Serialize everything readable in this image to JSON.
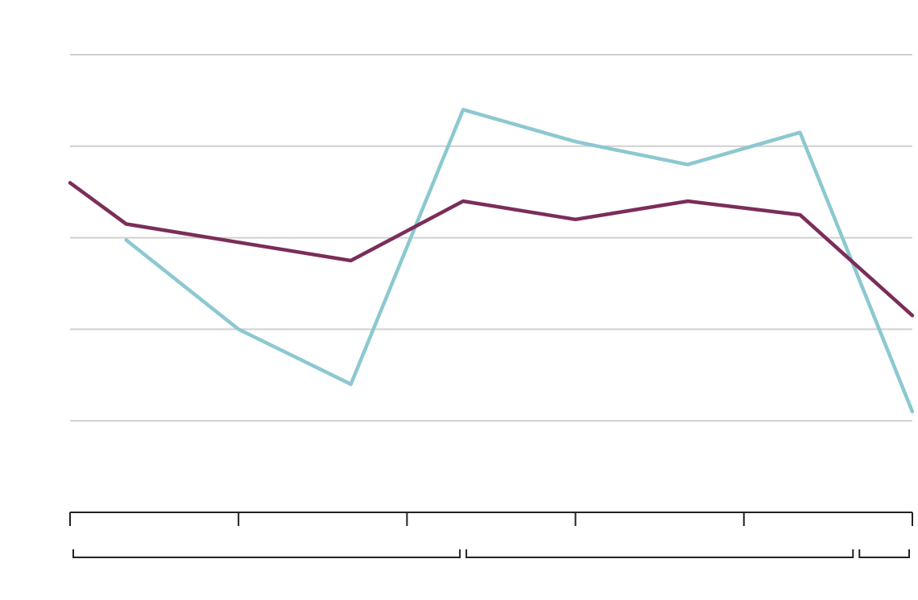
{
  "chart_data": {
    "type": "line",
    "x": [
      0,
      1,
      2,
      3,
      4,
      5,
      6,
      7,
      8,
      9,
      10,
      11,
      12,
      13,
      14,
      15
    ],
    "x_range": [
      0,
      15
    ],
    "ylim": [
      0,
      100
    ],
    "y_gridlines": [
      20,
      40,
      60,
      80,
      100
    ],
    "x_ticks": [
      0,
      3,
      6,
      9,
      12,
      15
    ],
    "bracket_groups": [
      [
        0,
        7
      ],
      [
        7,
        14
      ],
      [
        14,
        15
      ]
    ],
    "grid": true,
    "legend": "none",
    "title": "",
    "xlabel": "",
    "ylabel": "",
    "series": [
      {
        "color": "#8cc8d0",
        "points": [
          [
            1,
            59.5
          ],
          [
            3,
            40
          ],
          [
            5,
            28
          ],
          [
            7,
            88
          ],
          [
            9,
            81
          ],
          [
            11,
            76
          ],
          [
            13,
            83
          ],
          [
            15,
            22
          ]
        ]
      },
      {
        "color": "#7b2d5a",
        "points": [
          [
            0,
            72
          ],
          [
            1,
            63
          ],
          [
            3,
            59
          ],
          [
            5,
            55
          ],
          [
            7,
            68
          ],
          [
            9,
            64
          ],
          [
            11,
            68
          ],
          [
            13,
            65
          ],
          [
            15,
            43
          ]
        ]
      }
    ]
  }
}
